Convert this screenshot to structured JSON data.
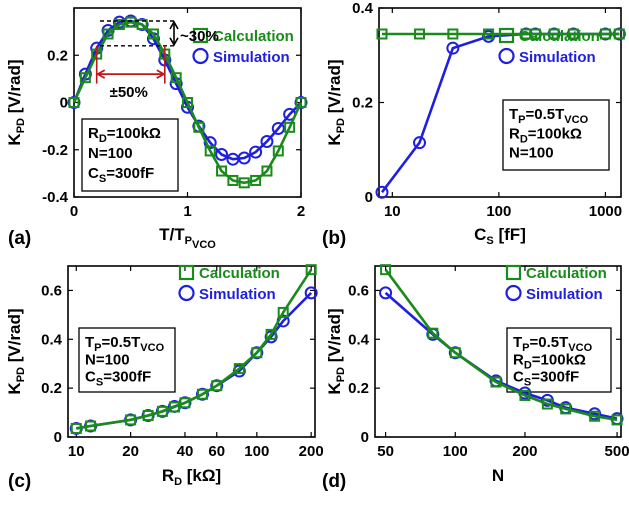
{
  "colors": {
    "calc": "#1a8a1a",
    "sim": "#1f1fe0",
    "annot_red": "#c0161c"
  },
  "legend": {
    "calc": "Calculation",
    "sim": "Simulation"
  },
  "chart_data": [
    {
      "type": "line",
      "panel": "(a)",
      "xlabel": {
        "main": "T",
        "sub1": "P",
        "mid": "/T",
        "sub2": "VCO"
      },
      "ylabel": {
        "main": "K",
        "sub": "PD",
        "rest": " [V/rad]"
      },
      "xlim": [
        0,
        2
      ],
      "ylim": [
        -0.4,
        0.4
      ],
      "xticks": [
        0,
        1,
        2
      ],
      "xticklabels": [
        "0",
        "1",
        "2"
      ],
      "yticks": [
        -0.4,
        -0.2,
        0,
        0.2
      ],
      "yticklabels": [
        "-0.4",
        "-0.2",
        "0",
        "0.2"
      ],
      "series": [
        {
          "name": "Calculation",
          "marker": "square",
          "x": [
            0,
            0.1,
            0.2,
            0.3,
            0.4,
            0.5,
            0.6,
            0.7,
            0.8,
            0.9,
            1.0,
            1.1,
            1.2,
            1.3,
            1.4,
            1.5,
            1.6,
            1.7,
            1.8,
            1.9,
            2.0
          ],
          "y": [
            0,
            0.105,
            0.205,
            0.29,
            0.33,
            0.34,
            0.33,
            0.29,
            0.205,
            0.105,
            0,
            -0.105,
            -0.205,
            -0.29,
            -0.33,
            -0.34,
            -0.33,
            -0.29,
            -0.205,
            -0.105,
            0
          ]
        },
        {
          "name": "Simulation",
          "marker": "circle",
          "x": [
            0,
            0.1,
            0.2,
            0.3,
            0.4,
            0.5,
            0.6,
            0.7,
            0.8,
            0.9,
            1.0,
            1.1,
            1.2,
            1.3,
            1.4,
            1.5,
            1.6,
            1.7,
            1.8,
            1.9,
            2.0
          ],
          "y": [
            0,
            0.12,
            0.23,
            0.305,
            0.34,
            0.345,
            0.33,
            0.27,
            0.18,
            0.08,
            -0.02,
            -0.1,
            -0.17,
            -0.22,
            -0.24,
            -0.235,
            -0.21,
            -0.165,
            -0.11,
            -0.05,
            0
          ]
        }
      ],
      "annotations": {
        "peak_diff": "~30%",
        "width_diff": "±50%"
      },
      "info": [
        {
          "main": "R",
          "sub": "D",
          "rest": "=100kΩ"
        },
        {
          "main": "N=100",
          "sub": "",
          "rest": ""
        },
        {
          "main": "C",
          "sub": "S",
          "rest": "=300fF"
        }
      ]
    },
    {
      "type": "line",
      "panel": "(b)",
      "xscale": "log",
      "xlabel": {
        "main": "C",
        "sub": "S",
        "rest": " [fF]"
      },
      "ylabel": {
        "main": "K",
        "sub": "PD",
        "rest": " [V/rad]"
      },
      "xlim": [
        7.5,
        1400
      ],
      "ylim": [
        0,
        0.4
      ],
      "xticks": [
        10,
        100,
        1000
      ],
      "xticklabels": [
        "10",
        "100",
        "1000"
      ],
      "yticks": [
        0,
        0.2,
        0.4
      ],
      "yticklabels": [
        "0",
        "0.2",
        "0.4"
      ],
      "series": [
        {
          "name": "Calculation",
          "marker": "square",
          "x": [
            8,
            18,
            37,
            80,
            180,
            220,
            330,
            500,
            1000,
            1350
          ],
          "y": [
            0.345,
            0.345,
            0.345,
            0.345,
            0.345,
            0.345,
            0.345,
            0.345,
            0.345,
            0.345
          ]
        },
        {
          "name": "Simulation",
          "marker": "circle",
          "x": [
            8,
            18,
            37,
            80,
            180,
            220,
            330,
            500,
            1000,
            1350
          ],
          "y": [
            0.01,
            0.115,
            0.315,
            0.34,
            0.345,
            0.345,
            0.345,
            0.345,
            0.345,
            0.345
          ]
        }
      ],
      "info": [
        {
          "main": "T",
          "sub": "P",
          "rest": "=0.5T",
          "sub2": "VCO"
        },
        {
          "main": "R",
          "sub": "D",
          "rest": "=100kΩ"
        },
        {
          "main": "N=100",
          "sub": "",
          "rest": ""
        }
      ]
    },
    {
      "type": "line",
      "panel": "(c)",
      "xscale": "log",
      "xlabel": {
        "main": "R",
        "sub": "D",
        "rest": " [kΩ]"
      },
      "ylabel": {
        "main": "K",
        "sub": "PD",
        "rest": " [V/rad]"
      },
      "xlim": [
        9,
        210
      ],
      "ylim": [
        0,
        0.7
      ],
      "xticks": [
        10,
        20,
        40,
        60,
        100,
        200
      ],
      "xticklabels": [
        "10",
        "20",
        "40",
        "60",
        "100",
        "200"
      ],
      "yticks": [
        0,
        0.2,
        0.4,
        0.6
      ],
      "yticklabels": [
        "0",
        "0.2",
        "0.4",
        "0.6"
      ],
      "series": [
        {
          "name": "Calculation",
          "marker": "square",
          "x": [
            10,
            12,
            20,
            25,
            30,
            35,
            40,
            50,
            60,
            80,
            100,
            120,
            140,
            200
          ],
          "y": [
            0.035,
            0.045,
            0.07,
            0.088,
            0.105,
            0.123,
            0.14,
            0.175,
            0.21,
            0.28,
            0.345,
            0.42,
            0.51,
            0.685
          ]
        },
        {
          "name": "Simulation",
          "marker": "circle",
          "x": [
            10,
            12,
            20,
            25,
            30,
            35,
            40,
            50,
            60,
            80,
            100,
            120,
            140,
            200
          ],
          "y": [
            0.035,
            0.045,
            0.07,
            0.088,
            0.105,
            0.125,
            0.14,
            0.175,
            0.21,
            0.27,
            0.345,
            0.41,
            0.475,
            0.59
          ]
        }
      ],
      "info": [
        {
          "main": "T",
          "sub": "P",
          "rest": "=0.5T",
          "sub2": "VCO"
        },
        {
          "main": "N=100",
          "sub": "",
          "rest": ""
        },
        {
          "main": "C",
          "sub": "S",
          "rest": "=300fF"
        }
      ]
    },
    {
      "type": "line",
      "panel": "(d)",
      "xscale": "log",
      "xlabel": {
        "main": "N",
        "sub": "",
        "rest": ""
      },
      "ylabel": {
        "main": "K",
        "sub": "PD",
        "rest": " [V/rad]"
      },
      "xlim": [
        45,
        520
      ],
      "ylim": [
        0,
        0.7
      ],
      "xticks": [
        50,
        100,
        200,
        500
      ],
      "xticklabels": [
        "50",
        "100",
        "200",
        "500"
      ],
      "yticks": [
        0,
        0.2,
        0.4,
        0.6
      ],
      "yticklabels": [
        "0",
        "0.2",
        "0.4",
        "0.6"
      ],
      "series": [
        {
          "name": "Calculation",
          "marker": "square",
          "x": [
            50,
            80,
            100,
            150,
            200,
            250,
            300,
            400,
            500
          ],
          "y": [
            0.685,
            0.425,
            0.345,
            0.225,
            0.17,
            0.135,
            0.115,
            0.085,
            0.07
          ]
        },
        {
          "name": "Simulation",
          "marker": "circle",
          "x": [
            50,
            80,
            100,
            150,
            200,
            250,
            300,
            400,
            500
          ],
          "y": [
            0.59,
            0.42,
            0.345,
            0.23,
            0.18,
            0.15,
            0.12,
            0.095,
            0.075
          ]
        }
      ],
      "info": [
        {
          "main": "T",
          "sub": "P",
          "rest": "=0.5T",
          "sub2": "VCO"
        },
        {
          "main": "R",
          "sub": "D",
          "rest": "=100kΩ"
        },
        {
          "main": "C",
          "sub": "S",
          "rest": "=300fF"
        }
      ]
    }
  ]
}
